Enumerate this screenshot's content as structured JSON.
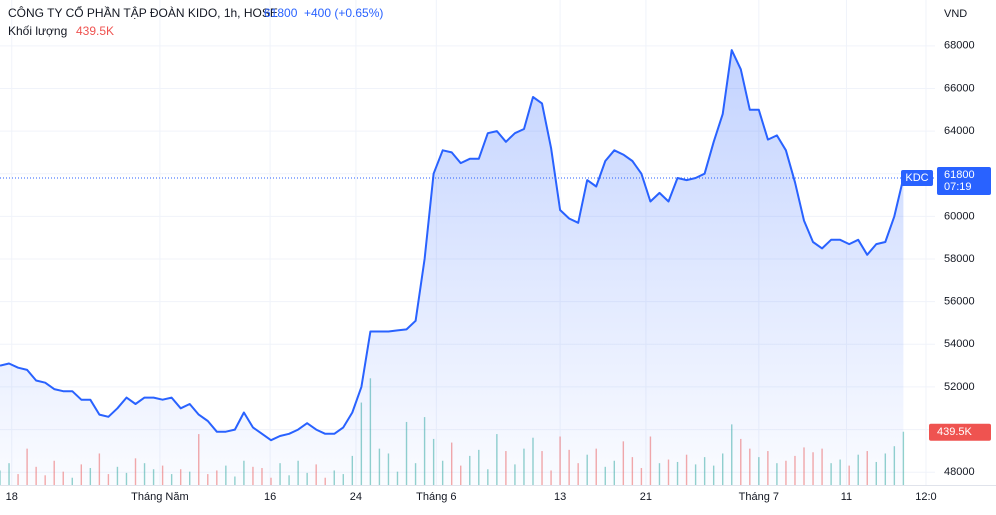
{
  "header": {
    "title": "CÔNG TY CỔ PHẦN TẬP ĐOÀN KIDO, 1h, HOSE",
    "price": 61800,
    "change": "+400 (+0.65%)",
    "volume_label": "Khối lượng",
    "volume_value": "439.5K"
  },
  "chart_data": {
    "type": "line",
    "unit": "VND",
    "color": "#2962ff",
    "up_color": "#26a69a",
    "down_color": "#ef5350",
    "xlim": [
      0,
      103.5
    ],
    "ylim": [
      47400,
      70150
    ],
    "vlim": [
      0,
      4000
    ],
    "xticks": [
      {
        "value": 1.3,
        "label": "18"
      },
      {
        "value": 17.7,
        "label": "Tháng Năm"
      },
      {
        "value": 29.9,
        "label": "16"
      },
      {
        "value": 39.4,
        "label": "24"
      },
      {
        "value": 48.3,
        "label": "Tháng 6"
      },
      {
        "value": 62,
        "label": "13"
      },
      {
        "value": 71.5,
        "label": "21"
      },
      {
        "value": 84,
        "label": "Tháng 7"
      },
      {
        "value": 93.7,
        "label": "11"
      },
      {
        "value": 102.5,
        "label": "12:0"
      }
    ],
    "yticks": [
      48000,
      50000,
      52000,
      54000,
      56000,
      58000,
      60000,
      62000,
      64000,
      66000,
      68000
    ],
    "series": [
      {
        "name": "KDC",
        "values": [
          53000,
          53100,
          52900,
          52800,
          52300,
          52200,
          51900,
          51800,
          51800,
          51400,
          51400,
          50700,
          50600,
          51000,
          51500,
          51200,
          51500,
          51500,
          51400,
          51500,
          51000,
          51200,
          50700,
          50400,
          49900,
          49900,
          50000,
          50800,
          50100,
          49800,
          49500,
          49700,
          49800,
          50000,
          50300,
          50000,
          49800,
          49800,
          50100,
          50800,
          52000,
          54600,
          54600,
          54600,
          54650,
          54700,
          55100,
          58000,
          62000,
          63100,
          63000,
          62500,
          62700,
          62700,
          63900,
          64000,
          63500,
          63900,
          64100,
          65600,
          65300,
          63200,
          60300,
          59900,
          59700,
          61700,
          61400,
          62600,
          63100,
          62900,
          62600,
          62000,
          60700,
          61100,
          60700,
          61800,
          61700,
          61800,
          62000,
          63500,
          64800,
          67800,
          66900,
          65000,
          65000,
          63600,
          63800,
          63100,
          61600,
          59800,
          58800,
          58500,
          58900,
          58900,
          58700,
          58900,
          58200,
          58700,
          58800,
          60000,
          61800
        ]
      }
    ],
    "volume": {
      "name": "Khối lượng",
      "values": [
        120,
        180,
        90,
        300,
        150,
        80,
        200,
        110,
        60,
        170,
        140,
        260,
        90,
        150,
        100,
        220,
        180,
        130,
        160,
        90,
        130,
        110,
        420,
        90,
        120,
        160,
        70,
        200,
        150,
        140,
        60,
        180,
        80,
        200,
        100,
        170,
        60,
        120,
        90,
        240,
        680,
        880,
        300,
        260,
        110,
        520,
        180,
        560,
        380,
        200,
        350,
        160,
        240,
        290,
        130,
        420,
        280,
        170,
        300,
        390,
        280,
        120,
        400,
        290,
        180,
        250,
        300,
        150,
        200,
        360,
        230,
        140,
        400,
        180,
        210,
        190,
        250,
        170,
        230,
        160,
        260,
        500,
        380,
        300,
        230,
        280,
        180,
        200,
        240,
        310,
        270,
        300,
        180,
        210,
        160,
        250,
        280,
        190,
        260,
        320,
        439.5
      ]
    },
    "last_badge": {
      "symbol": "KDC",
      "price": 61800,
      "time": "07:19"
    },
    "volume_badge": "439.5K"
  }
}
